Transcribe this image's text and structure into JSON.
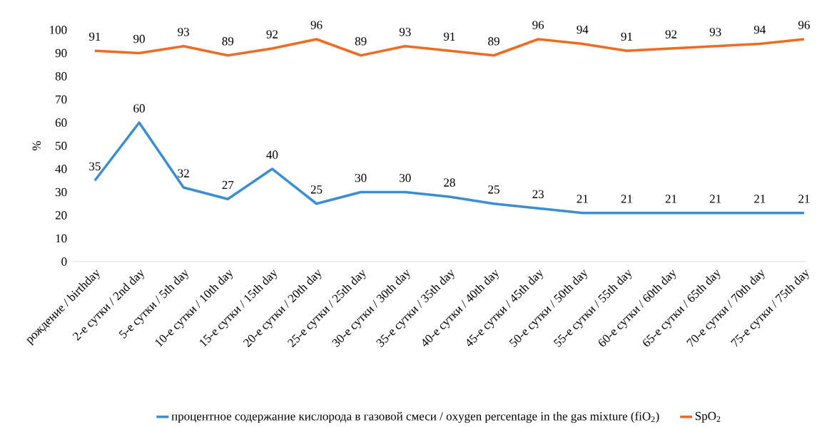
{
  "chart_data": {
    "type": "line",
    "ylabel": "%",
    "categories": [
      "рождение / birthday",
      "2-е сутки / 2nd day",
      "5-е сутки / 5th day",
      "10-е сутки / 10th day",
      "15-е сутки / 15th day",
      "20-е сутки / 20th day",
      "25-е сутки / 25th day",
      "30-е сутки / 30th day",
      "35-е сутки / 35th day",
      "40-е сутки / 40th day",
      "45-е сутки / 45th day",
      "50-е сутки / 50th day",
      "55-е сутки / 55th day",
      "60-е сутки / 60th day",
      "65-е сутки / 65th day",
      "70-е сутки / 70th day",
      "75-е сутки / 75th day"
    ],
    "series": [
      {
        "name": "процентное содержание кислорода в газовой смеси / oxygen percentage in the gas mixture (fiO$_{2}$)",
        "color": "#3b8ed4",
        "values": [
          35,
          60,
          32,
          27,
          40,
          25,
          30,
          30,
          28,
          25,
          23,
          21,
          21,
          21,
          21,
          21,
          21
        ]
      },
      {
        "name": "SpO$_{2}$",
        "color": "#ef6b24",
        "values": [
          91,
          90,
          93,
          89,
          92,
          96,
          89,
          93,
          91,
          89,
          96,
          94,
          91,
          92,
          93,
          94,
          96
        ]
      }
    ],
    "ylim": [
      0,
      100
    ],
    "yticks": [
      0,
      10,
      20,
      30,
      40,
      50,
      60,
      70,
      80,
      90,
      100
    ],
    "data_labels": true,
    "legend": "bottom",
    "marker": "none",
    "line_style": "solid"
  }
}
